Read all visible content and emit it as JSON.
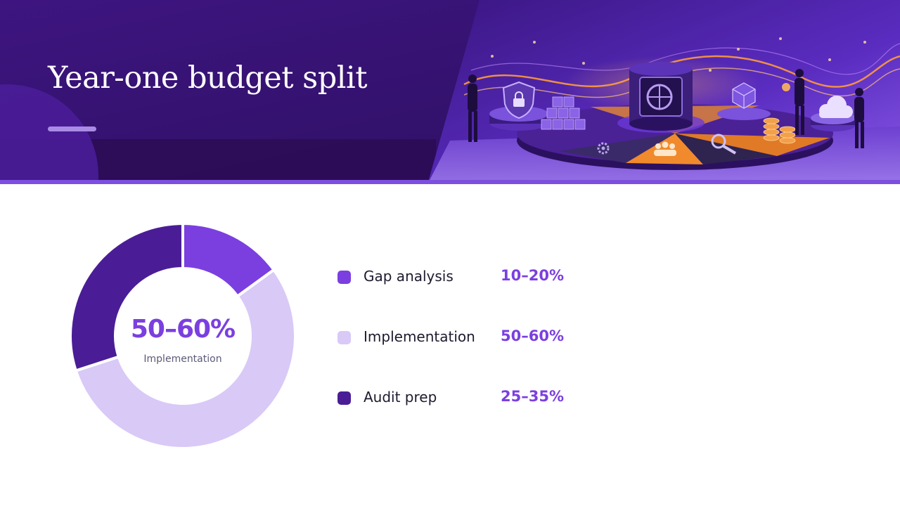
{
  "slide": {
    "title": "Year-one budget split",
    "accent_color": "#7b3fe0",
    "header_color": "#2a0f5e"
  },
  "header_illustration": {
    "icons": [
      "shield-lock-icon",
      "vault-icon",
      "gear-icon",
      "people-icon",
      "magnifier-icon",
      "cloud-icon",
      "cube-icon",
      "coin-stack-icon"
    ]
  },
  "chart_data": {
    "type": "pie",
    "variant": "donut",
    "title": "",
    "center_value": "50–60%",
    "center_label": "Implementation",
    "legend_position": "right",
    "slices": [
      {
        "label": "Gap analysis",
        "value_text": "10–20%",
        "value": 15,
        "color": "#7b3fe0"
      },
      {
        "label": "Implementation",
        "value_text": "50–60%",
        "value": 55,
        "color": "#d9c9f7"
      },
      {
        "label": "Audit prep",
        "value_text": "25–35%",
        "value": 30,
        "color": "#4a1d96"
      }
    ]
  }
}
